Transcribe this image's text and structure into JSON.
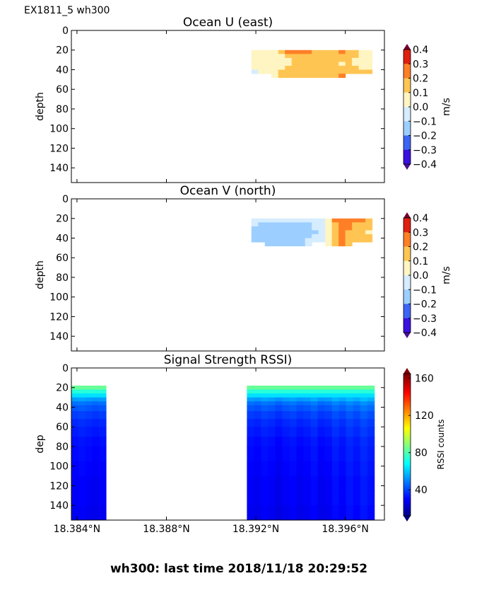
{
  "header": {
    "label": "EX1811_5 wh300"
  },
  "footer": {
    "label": "wh300: last time 2018/11/18 20:29:52"
  },
  "chart_data": [
    {
      "type": "heatmap",
      "title": "Ocean U (east)",
      "ylabel": "depth",
      "ylim": [
        155,
        0
      ],
      "yticks": [
        0,
        20,
        40,
        60,
        80,
        100,
        120,
        140
      ],
      "xlim": [
        18.38375,
        18.39775
      ],
      "xticks": [
        18.384,
        18.388,
        18.392,
        18.396
      ],
      "colorbar": {
        "label": "m/s",
        "ticks": [
          "0.4",
          "0.3",
          "0.2",
          "0.1",
          "0.0",
          "−0.1",
          "−0.2",
          "−0.3",
          "−0.4"
        ],
        "levels": [
          -0.4,
          -0.3,
          -0.2,
          -0.1,
          0,
          0.1,
          0.2,
          0.3,
          0.4
        ]
      },
      "x_start": 18.3918,
      "x_step": 0.0003,
      "depths": [
        20,
        24,
        28,
        32,
        36,
        40,
        44
      ],
      "values": [
        [
          0.05,
          0.05,
          0.05,
          0.05,
          0.15,
          0.25,
          0.25,
          0.25,
          0.25,
          0.15,
          0.15,
          0.15,
          0.15,
          0.25,
          0.15,
          0.15,
          0.05,
          0.05
        ],
        [
          0.05,
          0.05,
          0.05,
          0.05,
          0.05,
          0.15,
          0.15,
          0.15,
          0.15,
          0.15,
          0.15,
          0.15,
          0.15,
          0.15,
          0.15,
          0.15,
          0.05,
          0.05
        ],
        [
          0.05,
          0.05,
          0.05,
          0.05,
          0.05,
          0.05,
          0.15,
          0.15,
          0.15,
          0.15,
          0.15,
          0.15,
          0.15,
          0.15,
          0.15,
          0.05,
          0.05,
          0.05
        ],
        [
          0.05,
          0.05,
          0.05,
          0.05,
          0.05,
          0.05,
          0.15,
          0.15,
          0.15,
          0.15,
          0.15,
          0.15,
          0.15,
          0.05,
          0.15,
          0.05,
          0.05,
          0.05
        ],
        [
          0.05,
          0.05,
          0.05,
          0.05,
          0.05,
          0.15,
          0.15,
          0.15,
          0.15,
          0.15,
          0.15,
          0.15,
          0.15,
          0.15,
          0.15,
          0.15,
          0.05,
          0.05
        ],
        [
          -0.05,
          0.05,
          0.05,
          0.05,
          0.15,
          0.15,
          0.15,
          0.15,
          0.15,
          0.15,
          0.15,
          0.15,
          0.15,
          0.15,
          0.15,
          0.15,
          0.15,
          0.15
        ],
        [
          null,
          null,
          null,
          0.05,
          0.15,
          0.15,
          0.15,
          0.15,
          0.15,
          0.15,
          0.15,
          0.15,
          0.15,
          0.25,
          null,
          null,
          null,
          null
        ]
      ]
    },
    {
      "type": "heatmap",
      "title": "Ocean V (north)",
      "ylabel": "depth",
      "ylim": [
        155,
        0
      ],
      "yticks": [
        0,
        20,
        40,
        60,
        80,
        100,
        120,
        140
      ],
      "xlim": [
        18.38375,
        18.39775
      ],
      "xticks": [
        18.384,
        18.388,
        18.392,
        18.396
      ],
      "colorbar": {
        "label": "m/s",
        "ticks": [
          "0.4",
          "0.3",
          "0.2",
          "0.1",
          "0.0",
          "−0.1",
          "−0.2",
          "−0.3",
          "−0.4"
        ],
        "levels": [
          -0.4,
          -0.3,
          -0.2,
          -0.1,
          0,
          0.1,
          0.2,
          0.3,
          0.4
        ]
      },
      "x_start": 18.3918,
      "x_step": 0.0003,
      "depths": [
        20,
        24,
        28,
        32,
        36,
        40,
        44
      ],
      "values": [
        [
          -0.05,
          -0.05,
          -0.05,
          -0.05,
          -0.05,
          -0.05,
          -0.05,
          -0.05,
          -0.05,
          -0.05,
          -0.05,
          0.05,
          0.25,
          0.25,
          0.25,
          0.25,
          0.25,
          0.15
        ],
        [
          -0.05,
          -0.15,
          -0.15,
          -0.15,
          -0.15,
          -0.15,
          -0.15,
          -0.15,
          -0.15,
          -0.05,
          -0.05,
          0.05,
          0.15,
          0.25,
          0.25,
          0.15,
          0.15,
          0.15
        ],
        [
          -0.15,
          -0.15,
          -0.15,
          -0.15,
          -0.15,
          -0.15,
          -0.15,
          -0.15,
          -0.15,
          -0.05,
          -0.05,
          0.05,
          0.15,
          0.25,
          0.25,
          0.15,
          0.15,
          0.15
        ],
        [
          -0.15,
          -0.15,
          -0.15,
          -0.15,
          -0.15,
          -0.15,
          -0.15,
          -0.15,
          -0.15,
          -0.15,
          -0.05,
          0.05,
          0.15,
          0.25,
          0.15,
          0.15,
          0.15,
          0.05
        ],
        [
          -0.15,
          -0.15,
          -0.15,
          -0.15,
          -0.15,
          -0.15,
          -0.15,
          -0.15,
          -0.15,
          -0.05,
          -0.05,
          0.05,
          0.15,
          0.25,
          0.15,
          0.15,
          0.15,
          0.15
        ],
        [
          -0.15,
          -0.15,
          -0.15,
          -0.15,
          -0.15,
          -0.15,
          -0.15,
          -0.15,
          -0.05,
          -0.05,
          -0.05,
          0.05,
          0.15,
          0.25,
          0.15,
          0.15,
          0.15,
          0.15
        ],
        [
          null,
          null,
          -0.15,
          -0.15,
          -0.15,
          -0.15,
          -0.15,
          -0.15,
          -0.05,
          null,
          null,
          0.05,
          0.15,
          0.25,
          0.15,
          null,
          null,
          null
        ]
      ]
    },
    {
      "type": "heatmap",
      "title": "Signal Strength RSSI)",
      "ylabel": "dep",
      "ylim": [
        155,
        0
      ],
      "yticks": [
        0,
        20,
        40,
        60,
        80,
        100,
        120,
        140
      ],
      "xlim": [
        18.38375,
        18.39775
      ],
      "xticks": [
        18.384,
        18.388,
        18.392,
        18.396
      ],
      "colorbar": {
        "label": "RSSI counts",
        "ticks": [
          "160",
          "120",
          "80",
          "40"
        ],
        "range": [
          12,
          165
        ]
      },
      "depths": [
        18,
        22,
        26,
        30,
        34,
        38,
        44,
        52,
        60,
        70,
        80,
        95,
        110,
        125,
        140,
        155
      ],
      "profile": [
        85,
        75,
        65,
        55,
        48,
        44,
        40,
        37,
        35,
        33,
        32,
        31,
        30,
        30,
        29,
        29
      ],
      "blocks": [
        {
          "x": [
            18.38375,
            18.3853
          ],
          "columns": 5,
          "offsets": [
            0,
            1,
            0,
            -1,
            0
          ]
        },
        {
          "x": [
            18.3916,
            18.3973
          ],
          "columns": 18,
          "offsets": [
            0,
            -1,
            1,
            0,
            -2,
            0,
            1,
            -1,
            0,
            2,
            -1,
            0,
            3,
            1,
            4,
            2,
            5,
            3
          ]
        }
      ]
    }
  ]
}
